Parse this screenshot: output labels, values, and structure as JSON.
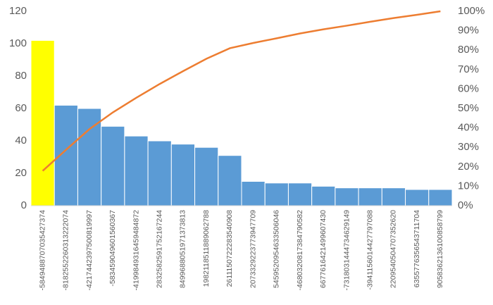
{
  "chart_data": {
    "type": "pareto",
    "categories": [
      "-5849488707035427374",
      "-8182552260313222074",
      "-4217442397500819997",
      "-583459049601560367",
      "-4199849316459484872",
      "2832582591752167244",
      "8499688051971373813",
      "1982118511889062788",
      "2611150722283540908",
      "2073329223773947709",
      "5459520954633506046",
      "-4680320817384790582",
      "6677616421499607430",
      "-7318031444734629149",
      "-3941156014427797088",
      "2209540504707352620",
      "6355776356543711704",
      "9058362136100858799"
    ],
    "series": [
      {
        "type": "bar",
        "colors": [
          "#ffff00",
          "#5b9bd5",
          "#5b9bd5",
          "#5b9bd5",
          "#5b9bd5",
          "#5b9bd5",
          "#5b9bd5",
          "#5b9bd5",
          "#5b9bd5",
          "#5b9bd5",
          "#5b9bd5",
          "#5b9bd5",
          "#5b9bd5",
          "#5b9bd5",
          "#5b9bd5",
          "#5b9bd5",
          "#5b9bd5",
          "#5b9bd5"
        ],
        "values": [
          102,
          62,
          60,
          49,
          43,
          40,
          38,
          36,
          31,
          15,
          14,
          14,
          12,
          11,
          11,
          11,
          10,
          10
        ]
      },
      {
        "type": "line",
        "axis": "y2",
        "color": "#ed7d31",
        "values": [
          17.9,
          28.8,
          39.4,
          48.0,
          55.5,
          62.6,
          69.2,
          75.6,
          81.0,
          83.7,
          86.1,
          88.6,
          90.7,
          92.6,
          94.6,
          96.5,
          98.2,
          100
        ]
      }
    ],
    "ylim": [
      0,
      120
    ],
    "yticks": [
      0,
      20,
      40,
      60,
      80,
      100,
      120
    ],
    "y2lim": [
      0,
      100
    ],
    "y2ticks": [
      {
        "value": 0,
        "label": "0%"
      },
      {
        "value": 10,
        "label": "10%"
      },
      {
        "value": 20,
        "label": "20%"
      },
      {
        "value": 30,
        "label": "30%"
      },
      {
        "value": 40,
        "label": "40%"
      },
      {
        "value": 50,
        "label": "50%"
      },
      {
        "value": 60,
        "label": "60%"
      },
      {
        "value": 70,
        "label": "70%"
      },
      {
        "value": 80,
        "label": "80%"
      },
      {
        "value": 90,
        "label": "90%"
      },
      {
        "value": 100,
        "label": "100%"
      }
    ]
  }
}
